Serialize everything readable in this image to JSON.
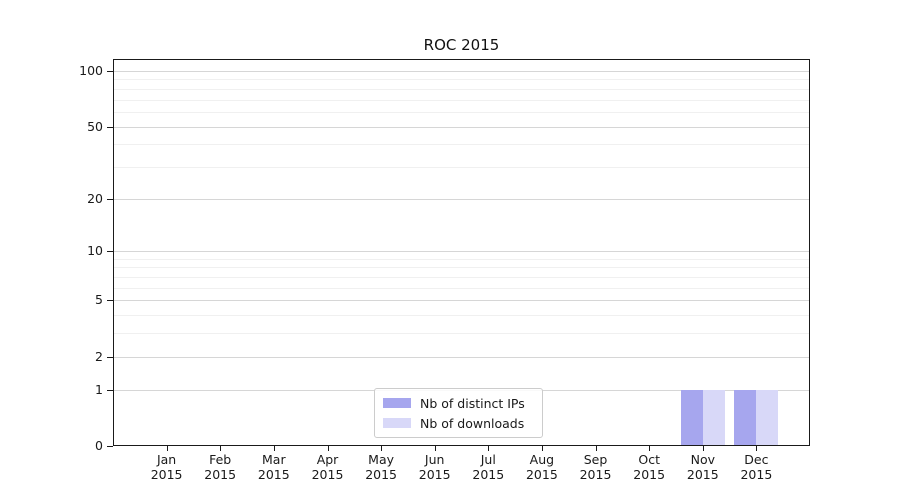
{
  "chart_data": {
    "type": "bar",
    "title": "ROC 2015",
    "x_tick_months": [
      "Jan",
      "Feb",
      "Mar",
      "Apr",
      "May",
      "Jun",
      "Jul",
      "Aug",
      "Sep",
      "Oct",
      "Nov",
      "Dec"
    ],
    "x_tick_year": "2015",
    "series": [
      {
        "name": "Nb of distinct IPs",
        "color": "#a6a6ee",
        "values": [
          0,
          0,
          0,
          0,
          0,
          0,
          0,
          0,
          0,
          0,
          1,
          1
        ]
      },
      {
        "name": "Nb of downloads",
        "color": "#d8d8f8",
        "values": [
          0,
          0,
          0,
          0,
          0,
          0,
          0,
          0,
          0,
          0,
          1,
          1
        ]
      }
    ],
    "yscale": "log1p",
    "ylim": [
      0,
      116
    ],
    "yticks_major": [
      0,
      1,
      2,
      5,
      10,
      20,
      50,
      100
    ],
    "yticks_minor": [
      3,
      4,
      6,
      7,
      8,
      9,
      30,
      40,
      60,
      70,
      80,
      90
    ],
    "grid": true,
    "legend_position": "lower center",
    "colors": {
      "major_grid": "#d6d6d6",
      "minor_grid": "#f0f0f0",
      "spine": "#1a1a1a",
      "text": "#1a1a1a"
    }
  }
}
